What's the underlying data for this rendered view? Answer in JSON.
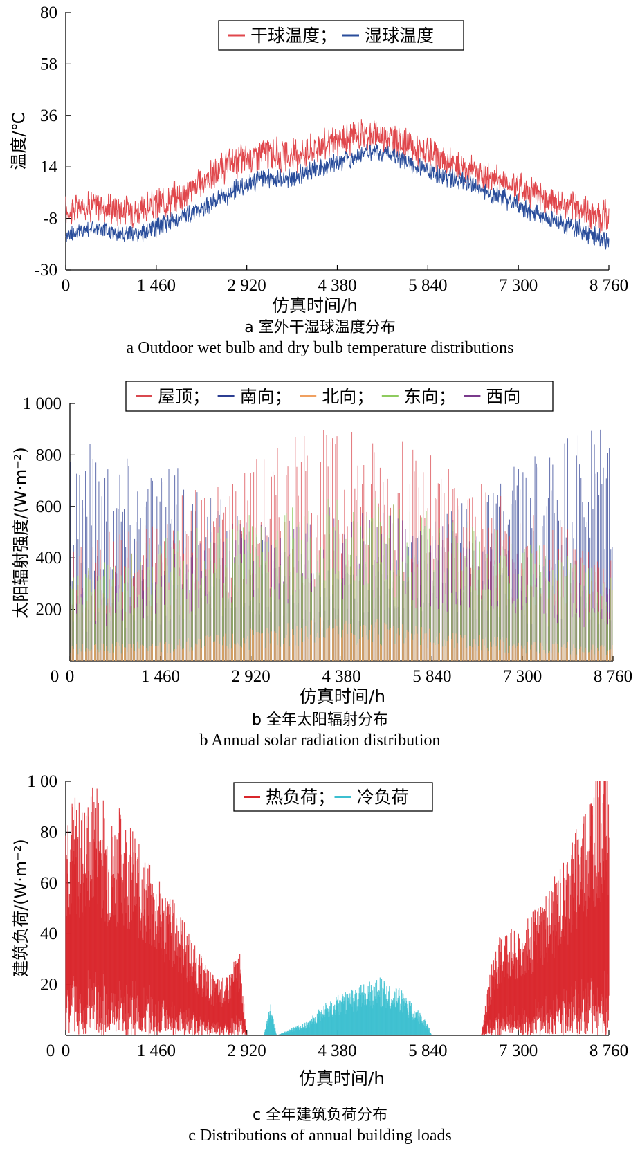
{
  "colors": {
    "dry_bulb": "#e0474c",
    "wet_bulb": "#2a4d9b",
    "roof": "#d9484f",
    "south": "#2c3e92",
    "north": "#f0a060",
    "east": "#8ecb5e",
    "west": "#7a3a8c",
    "heat": "#d9262b",
    "cool": "#3cbfd0"
  },
  "chart_data": [
    {
      "type": "line",
      "caption_cn": "a  室外干湿球温度分布",
      "caption_en": "a  Outdoor wet bulb and dry bulb temperature distributions",
      "xlabel": "仿真时间/h",
      "ylabel": "温度/℃",
      "xlim": [
        0,
        8760
      ],
      "ylim": [
        -30,
        80
      ],
      "xticks": [
        "0",
        "1 460",
        "2 920",
        "4 380",
        "5 840",
        "7 300",
        "8 760"
      ],
      "yticks": [
        "-30",
        "-8",
        "14",
        "36",
        "58",
        "80"
      ],
      "legend_position": "top-center",
      "series": [
        {
          "name": "干球温度；",
          "color_key": "dry_bulb",
          "x": [
            0,
            400,
            800,
            1200,
            1600,
            2000,
            2400,
            2800,
            3200,
            3600,
            4000,
            4400,
            4800,
            5200,
            5600,
            6000,
            6400,
            6800,
            7200,
            7600,
            8000,
            8400,
            8760
          ],
          "y": [
            -5,
            -2,
            -4,
            -5,
            -1,
            4,
            11,
            17,
            20,
            18,
            22,
            25,
            28,
            27,
            22,
            17,
            14,
            10,
            7,
            2,
            -2,
            -5,
            -8
          ]
        },
        {
          "name": "湿球温度",
          "color_key": "wet_bulb",
          "x": [
            0,
            400,
            800,
            1200,
            1600,
            2000,
            2400,
            2800,
            3200,
            3600,
            4000,
            4400,
            4800,
            5200,
            5600,
            6000,
            6400,
            6800,
            7200,
            7600,
            8000,
            8400,
            8760
          ],
          "y": [
            -15,
            -12,
            -14,
            -15,
            -10,
            -6,
            -1,
            5,
            9,
            9,
            13,
            16,
            20,
            20,
            15,
            11,
            8,
            3,
            -1,
            -6,
            -10,
            -14,
            -18
          ]
        }
      ]
    },
    {
      "type": "bar",
      "caption_cn": "b  全年太阳辐射分布",
      "caption_en": "b  Annual solar radiation distribution",
      "xlabel": "仿真时间/h",
      "ylabel": "太阳辐射强度/(W·m⁻²)",
      "xlim": [
        0,
        8760
      ],
      "ylim": [
        0,
        1000
      ],
      "xticks": [
        "0",
        "1 460",
        "2 920",
        "4 380",
        "5 840",
        "7 300",
        "8 760"
      ],
      "yticks": [
        "200",
        "400",
        "600",
        "800",
        "1 000"
      ],
      "legend_position": "top-center",
      "series": [
        {
          "name": "屋顶；",
          "color_key": "roof",
          "x": [
            0,
            1460,
            2920,
            3650,
            4380,
            5110,
            5840,
            7300,
            8760
          ],
          "y": [
            430,
            560,
            780,
            850,
            880,
            850,
            770,
            560,
            420
          ]
        },
        {
          "name": "南向；",
          "color_key": "south",
          "x": [
            0,
            1460,
            2920,
            3650,
            4380,
            5110,
            5840,
            7300,
            8760
          ],
          "y": [
            880,
            760,
            520,
            400,
            330,
            400,
            520,
            760,
            900
          ]
        },
        {
          "name": "北向；",
          "color_key": "north",
          "x": [
            0,
            1460,
            2920,
            3650,
            4380,
            5110,
            5840,
            7300,
            8760
          ],
          "y": [
            60,
            80,
            120,
            150,
            180,
            150,
            120,
            80,
            60
          ]
        },
        {
          "name": "东向；",
          "color_key": "east",
          "x": [
            0,
            1460,
            2920,
            3650,
            4380,
            5110,
            5840,
            7300,
            8760
          ],
          "y": [
            320,
            460,
            560,
            600,
            620,
            600,
            560,
            460,
            320
          ]
        },
        {
          "name": "西向",
          "color_key": "west",
          "x": [
            0,
            1460,
            2920,
            3650,
            4380,
            5110,
            5840,
            7300,
            8760
          ],
          "y": [
            280,
            400,
            520,
            560,
            580,
            560,
            520,
            400,
            280
          ]
        }
      ]
    },
    {
      "type": "bar",
      "caption_cn": "c  全年建筑负荷分布",
      "caption_en": "c  Distributions of annual building loads",
      "xlabel": "仿真时间/h",
      "ylabel": "建筑负荷/(W·m⁻²)",
      "xlim": [
        0,
        8760
      ],
      "ylim": [
        0,
        100
      ],
      "xticks": [
        "0",
        "1 460",
        "2 920",
        "4 380",
        "5 840",
        "7 300",
        "8 760"
      ],
      "yticks": [
        "20",
        "40",
        "60",
        "80",
        "1 00"
      ],
      "legend_position": "top-center",
      "series": [
        {
          "name": "热负荷；",
          "color_key": "heat",
          "x": [
            0,
            300,
            500,
            700,
            900,
            1200,
            1460,
            1800,
            2100,
            2400,
            2600,
            2800,
            2920,
            6700,
            6900,
            7100,
            7300,
            7600,
            7900,
            8200,
            8500,
            8760
          ],
          "y": [
            85,
            80,
            90,
            75,
            80,
            65,
            55,
            45,
            30,
            20,
            20,
            30,
            0,
            0,
            30,
            38,
            35,
            45,
            55,
            70,
            90,
            100
          ]
        },
        {
          "name": "冷负荷",
          "color_key": "cool",
          "x": [
            3200,
            3300,
            3400,
            3900,
            4200,
            4500,
            4800,
            5100,
            5400,
            5700,
            5840,
            5900
          ],
          "y": [
            0,
            12,
            0,
            5,
            12,
            15,
            18,
            20,
            16,
            8,
            4,
            0
          ]
        }
      ]
    }
  ]
}
